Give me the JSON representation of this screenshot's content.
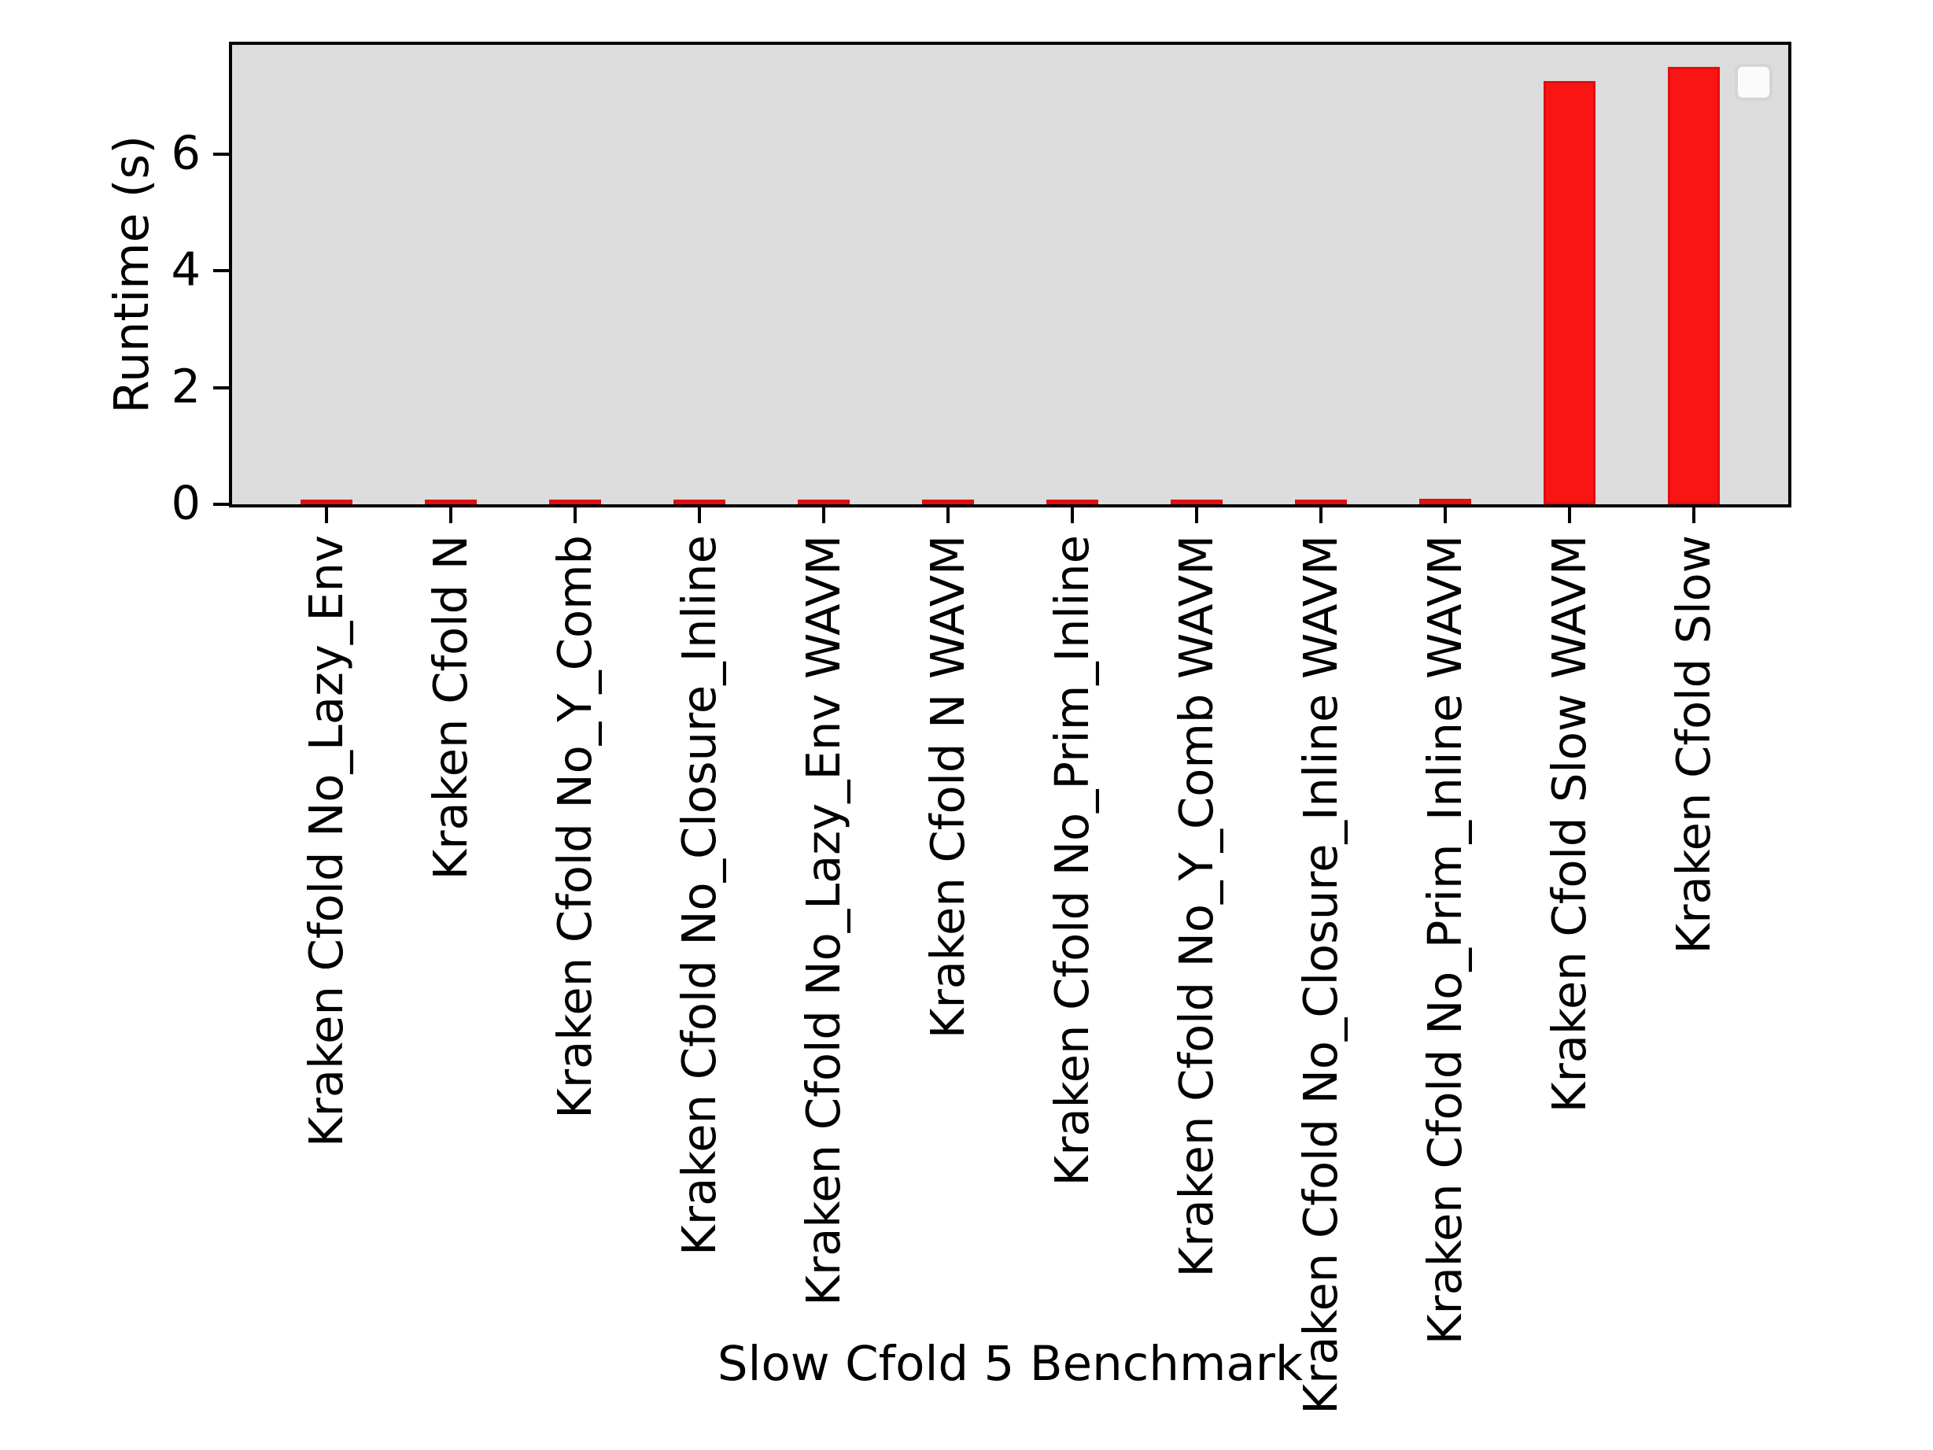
{
  "figure": {
    "background_color": "#ffffff",
    "plot_background_color": "#dcdcdc",
    "spine_color": "#000000",
    "bar_color": "#fa1414",
    "bar_edge_color": "#e00e0e",
    "legend": {
      "visible": true,
      "entries": [],
      "position": "upper right",
      "background_color": "#fbfbfb",
      "border_color": "#d5d5d5"
    }
  },
  "chart_data": {
    "type": "bar",
    "title": "",
    "xlabel": "Slow Cfold 5 Benchmark",
    "ylabel": "Runtime (s)",
    "categories": [
      "Kraken Cfold No_Lazy_Env",
      "Kraken Cfold N",
      "Kraken Cfold No_Y_Comb",
      "Kraken Cfold No_Closure_Inline",
      "Kraken Cfold No_Lazy_Env WAVM",
      "Kraken Cfold N WAVM",
      "Kraken Cfold No_Prim_Inline",
      "Kraken Cfold No_Y_Comb WAVM",
      "Kraken Cfold No_Closure_Inline WAVM",
      "Kraken Cfold No_Prim_Inline WAVM",
      "Kraken Cfold Slow WAVM",
      "Kraken Cfold Slow"
    ],
    "values": [
      0.05,
      0.05,
      0.04,
      0.06,
      0.06,
      0.06,
      0.06,
      0.07,
      0.07,
      0.09,
      7.25,
      7.5
    ],
    "yticks": [
      0,
      2,
      4,
      6
    ],
    "ylim": [
      0,
      7.875
    ],
    "grid": false,
    "legend_entries": [],
    "legend_position": "upper right"
  }
}
